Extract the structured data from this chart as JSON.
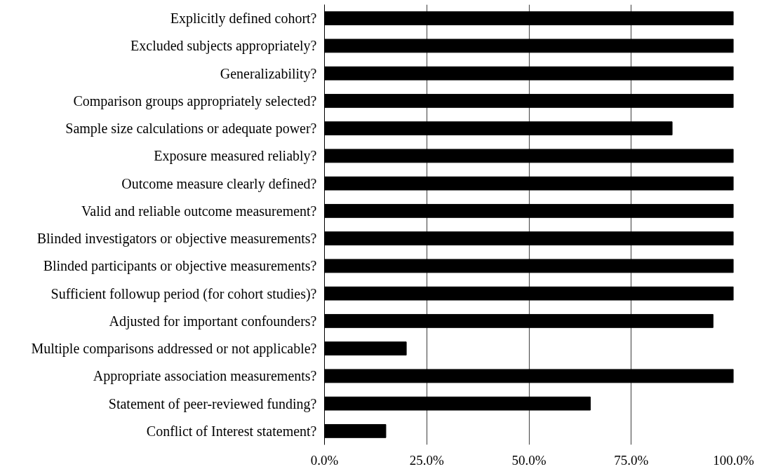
{
  "chart_data": {
    "type": "bar",
    "orientation": "horizontal",
    "categories": [
      "Explicitly defined cohort?",
      "Excluded subjects appropriately?",
      "Generalizability?",
      "Comparison groups appropriately selected?",
      "Sample size calculations or adequate power?",
      "Exposure measured reliably?",
      "Outcome measure clearly defined?",
      "Valid and reliable outcome measurement?",
      "Blinded investigators or objective measurements?",
      "Blinded participants or objective measurements?",
      "Sufficient followup period (for cohort studies)?",
      "Adjusted for important confounders?",
      "Multiple comparisons addressed or not applicable?",
      "Appropriate association measurements?",
      "Statement of peer-reviewed funding?",
      "Conflict of Interest statement?"
    ],
    "values": [
      100,
      100,
      100,
      100,
      85,
      100,
      100,
      100,
      100,
      100,
      100,
      95,
      20,
      100,
      65,
      15
    ],
    "color": "#000000",
    "xlim": [
      0,
      100
    ],
    "xticks": [
      {
        "value": 0,
        "label": "0.0%"
      },
      {
        "value": 25,
        "label": "25.0%"
      },
      {
        "value": 50,
        "label": "50.0%"
      },
      {
        "value": 75,
        "label": "75.0%"
      },
      {
        "value": 100,
        "label": "100.0%"
      }
    ],
    "grid": "x"
  }
}
